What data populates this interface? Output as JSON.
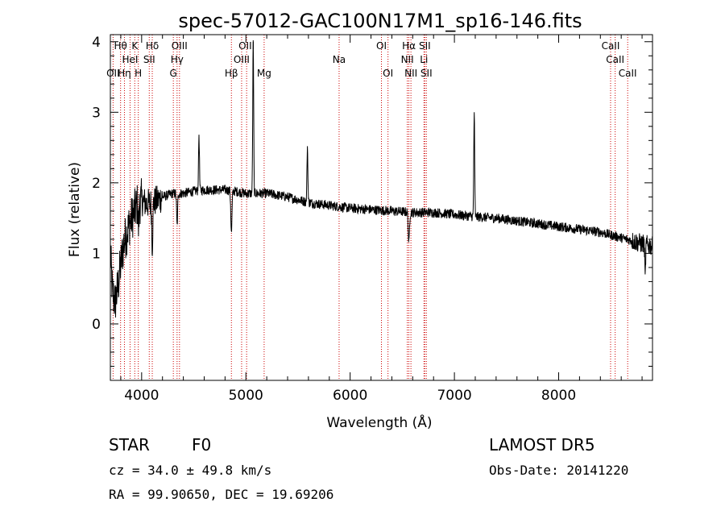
{
  "chart_data": {
    "type": "line",
    "title": "spec-57012-GAC100N17M1_sp16-146.fits",
    "xlabel": "Wavelength (Å)",
    "ylabel": "Flux (relative)",
    "xlim": [
      3700,
      8900
    ],
    "ylim": [
      -0.8,
      4.1
    ],
    "x_ticks": [
      4000,
      5000,
      6000,
      7000,
      8000
    ],
    "y_ticks": [
      0,
      1,
      2,
      3,
      4
    ],
    "grid": false,
    "legend": "none",
    "colors": {
      "spectrum": "#000000",
      "lines": "#cc0000",
      "axes": "#000000"
    },
    "spectrum_anchors": {
      "x": [
        3700,
        3720,
        3745,
        3770,
        3800,
        3830,
        3860,
        3890,
        3920,
        3960,
        4000,
        4050,
        4100,
        4150,
        4200,
        4300,
        4400,
        4500,
        4600,
        4700,
        4800,
        4900,
        5000,
        5200,
        5400,
        5600,
        5800,
        6000,
        6200,
        6400,
        6600,
        6800,
        7000,
        7200,
        7400,
        7600,
        7800,
        8000,
        8200,
        8400,
        8600,
        8700,
        8800,
        8900
      ],
      "y": [
        1.0,
        0.45,
        0.3,
        0.5,
        0.85,
        1.15,
        1.3,
        1.45,
        1.55,
        1.7,
        1.75,
        1.7,
        1.72,
        1.75,
        1.8,
        1.85,
        1.85,
        1.88,
        1.9,
        1.9,
        1.9,
        1.88,
        1.85,
        1.85,
        1.8,
        1.72,
        1.68,
        1.64,
        1.62,
        1.6,
        1.58,
        1.58,
        1.55,
        1.52,
        1.5,
        1.46,
        1.42,
        1.38,
        1.34,
        1.3,
        1.22,
        1.18,
        1.14,
        1.1
      ]
    },
    "spectrum_features": [
      {
        "x": 4550,
        "depth": 0.8,
        "width": 6
      },
      {
        "x": 5070,
        "depth": 2.2,
        "width": 6
      },
      {
        "x": 5590,
        "depth": 0.8,
        "width": 6
      },
      {
        "x": 7190,
        "depth": 1.5,
        "width": 6
      },
      {
        "x": 4861,
        "depth": -0.6,
        "width": 8
      },
      {
        "x": 4340,
        "depth": -0.45,
        "width": 7
      },
      {
        "x": 4102,
        "depth": -0.6,
        "width": 7
      },
      {
        "x": 6563,
        "depth": -0.45,
        "width": 8
      },
      {
        "x": 3970,
        "depth": -0.35,
        "width": 6
      },
      {
        "x": 8830,
        "depth": -0.5,
        "width": 5
      }
    ],
    "lines": [
      {
        "x": 3726,
        "label": "OII",
        "row": 3
      },
      {
        "x": 3798,
        "label": "Hθ",
        "row": 1
      },
      {
        "x": 3835,
        "label": "Hη",
        "row": 3
      },
      {
        "x": 3889,
        "label": "HeI",
        "row": 2
      },
      {
        "x": 3934,
        "label": "K",
        "row": 1
      },
      {
        "x": 3968,
        "label": "H",
        "row": 3
      },
      {
        "x": 4073,
        "label": "SII",
        "row": 2
      },
      {
        "x": 4102,
        "label": "Hδ",
        "row": 1
      },
      {
        "x": 4304,
        "label": "G",
        "row": 3
      },
      {
        "x": 4340,
        "label": "Hγ",
        "row": 2
      },
      {
        "x": 4363,
        "label": "OIII",
        "row": 1
      },
      {
        "x": 4861,
        "label": "Hβ",
        "row": 3
      },
      {
        "x": 4959,
        "label": "OIII",
        "row": 2
      },
      {
        "x": 5007,
        "label": "OIII",
        "row": 1
      },
      {
        "x": 5175,
        "label": "Mg",
        "row": 3
      },
      {
        "x": 5894,
        "label": "Na",
        "row": 2
      },
      {
        "x": 6300,
        "label": "OI",
        "row": 1
      },
      {
        "x": 6363,
        "label": "OI",
        "row": 3
      },
      {
        "x": 6548,
        "label": "NII",
        "row": 2
      },
      {
        "x": 6563,
        "label": "Hα",
        "row": 1
      },
      {
        "x": 6583,
        "label": "NII",
        "row": 3
      },
      {
        "x": 6708,
        "label": "Li",
        "row": 2
      },
      {
        "x": 6716,
        "label": "SII",
        "row": 1
      },
      {
        "x": 6731,
        "label": "SII",
        "row": 3
      },
      {
        "x": 8498,
        "label": "CaII",
        "row": 1
      },
      {
        "x": 8542,
        "label": "CaII",
        "row": 2
      },
      {
        "x": 8662,
        "label": "CaII",
        "row": 3
      }
    ]
  },
  "info": {
    "class": "STAR",
    "subclass": "F0",
    "survey": "LAMOST DR5",
    "cz": "cz = 34.0 ± 49.8 km/s",
    "obs_date": "Obs-Date: 20141220",
    "coords": "RA =  99.90650, DEC =  19.69206"
  }
}
